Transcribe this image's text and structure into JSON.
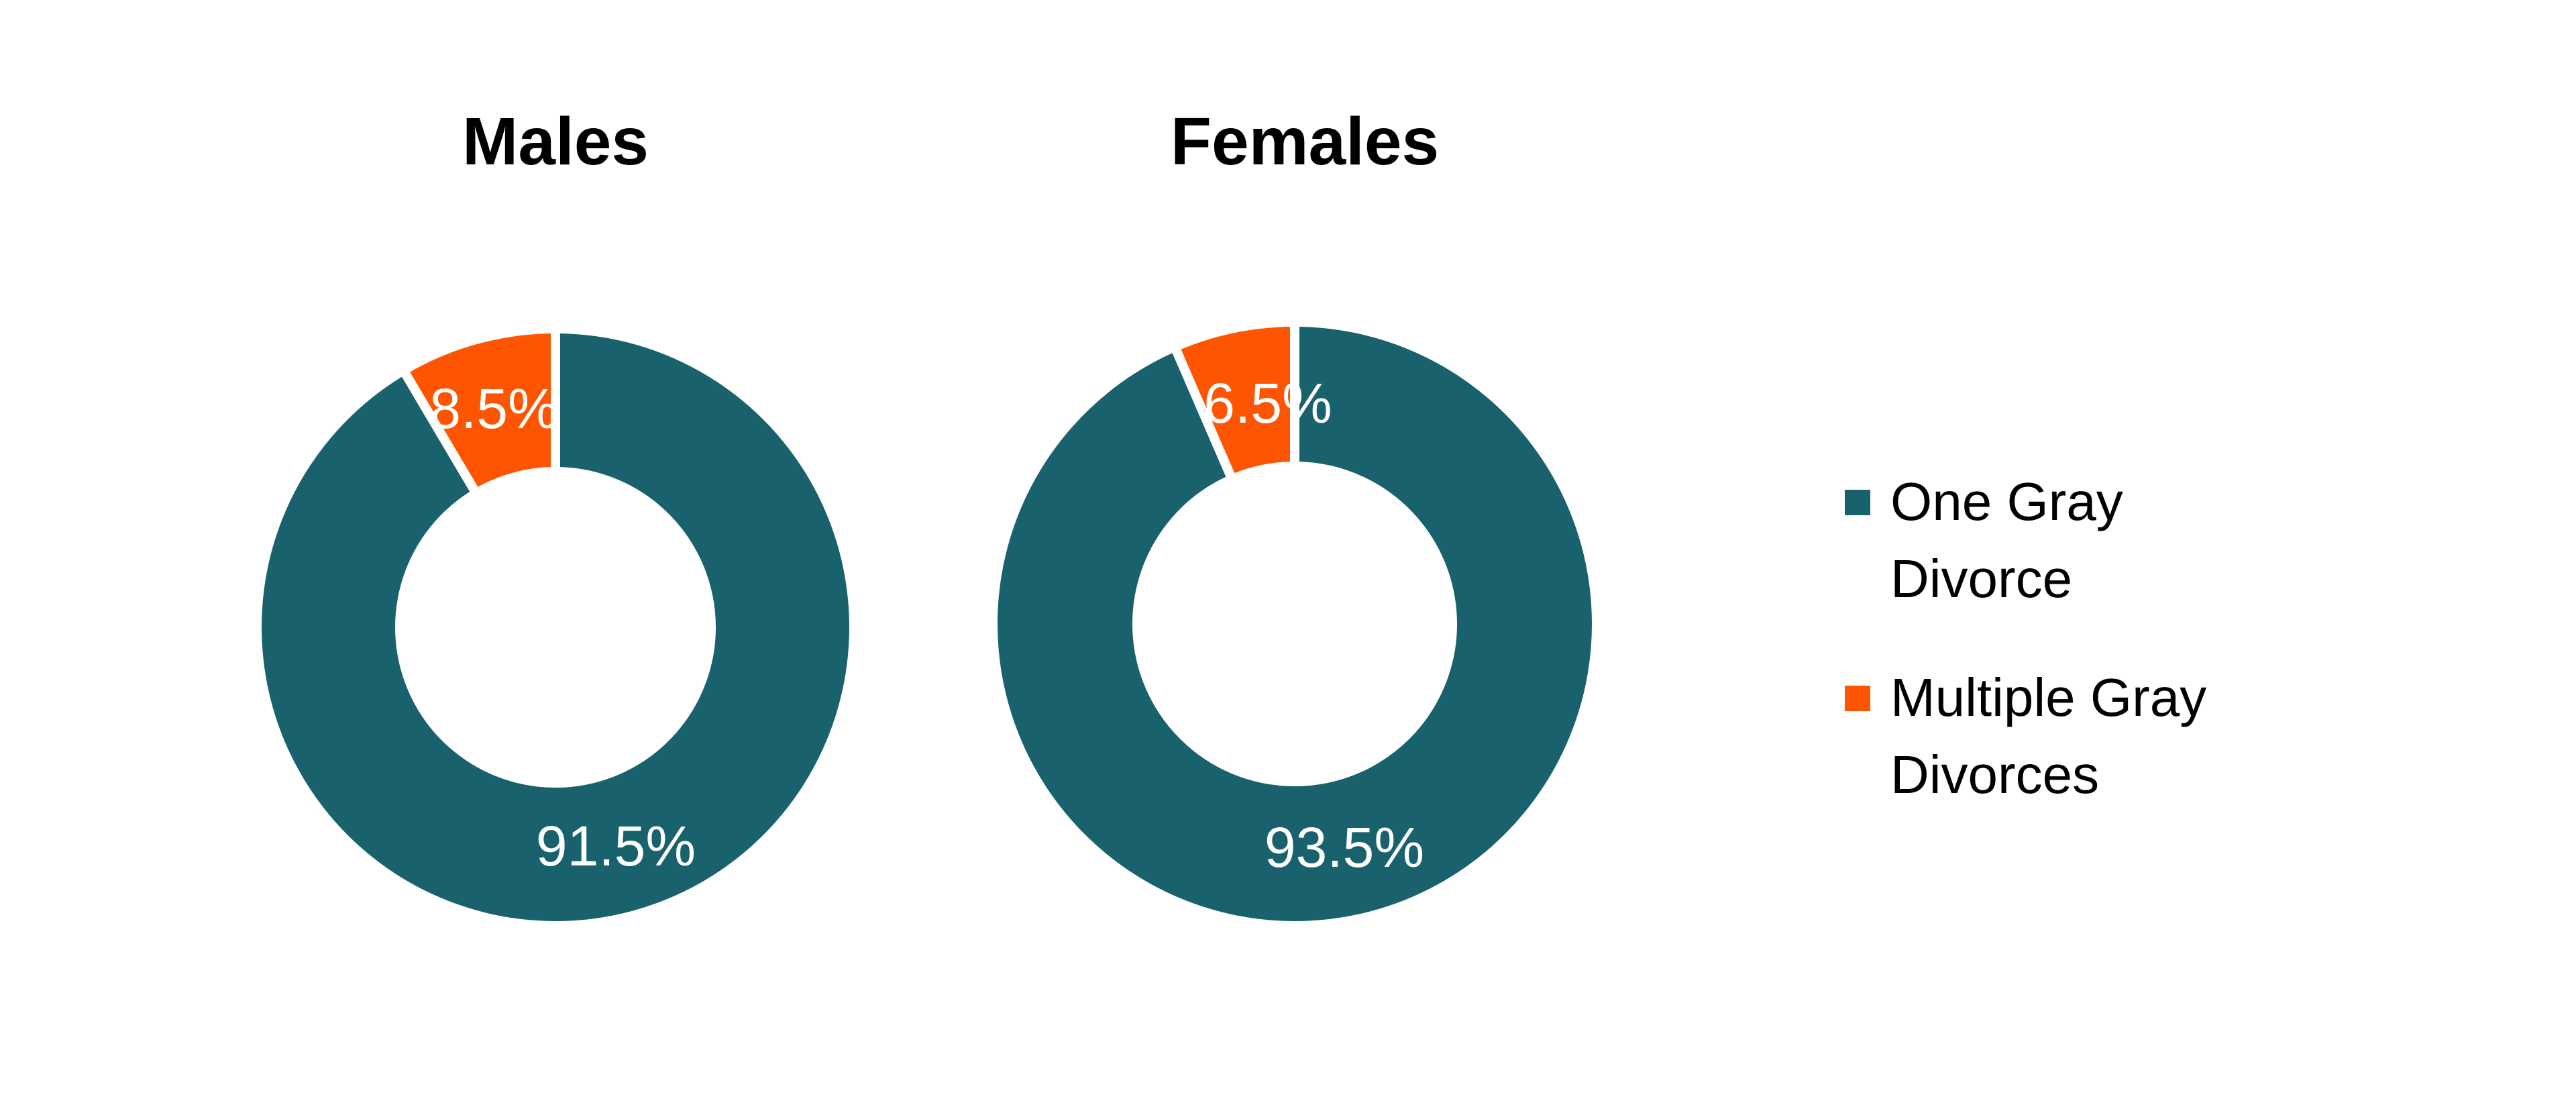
{
  "chart_data": [
    {
      "type": "pie",
      "title": "Males",
      "categories": [
        "One Gray Divorce",
        "Multiple Gray Divorces"
      ],
      "values": [
        91.5,
        8.5
      ],
      "labels": [
        "91.5%",
        "8.5%"
      ],
      "colors": [
        "#19626d",
        "#ff5500"
      ],
      "donut": true
    },
    {
      "type": "pie",
      "title": "Females",
      "categories": [
        "One Gray Divorce",
        "Multiple Gray Divorces"
      ],
      "values": [
        93.5,
        6.5
      ],
      "labels": [
        "93.5%",
        "6.5%"
      ],
      "colors": [
        "#19626d",
        "#ff5500"
      ],
      "donut": true
    }
  ],
  "legend": {
    "placement": "right",
    "items": [
      {
        "lines": [
          "One Gray",
          "Divorce"
        ],
        "color": "#19626d"
      },
      {
        "lines": [
          "Multiple Gray",
          "Divorces"
        ],
        "color": "#ff5500"
      }
    ]
  }
}
